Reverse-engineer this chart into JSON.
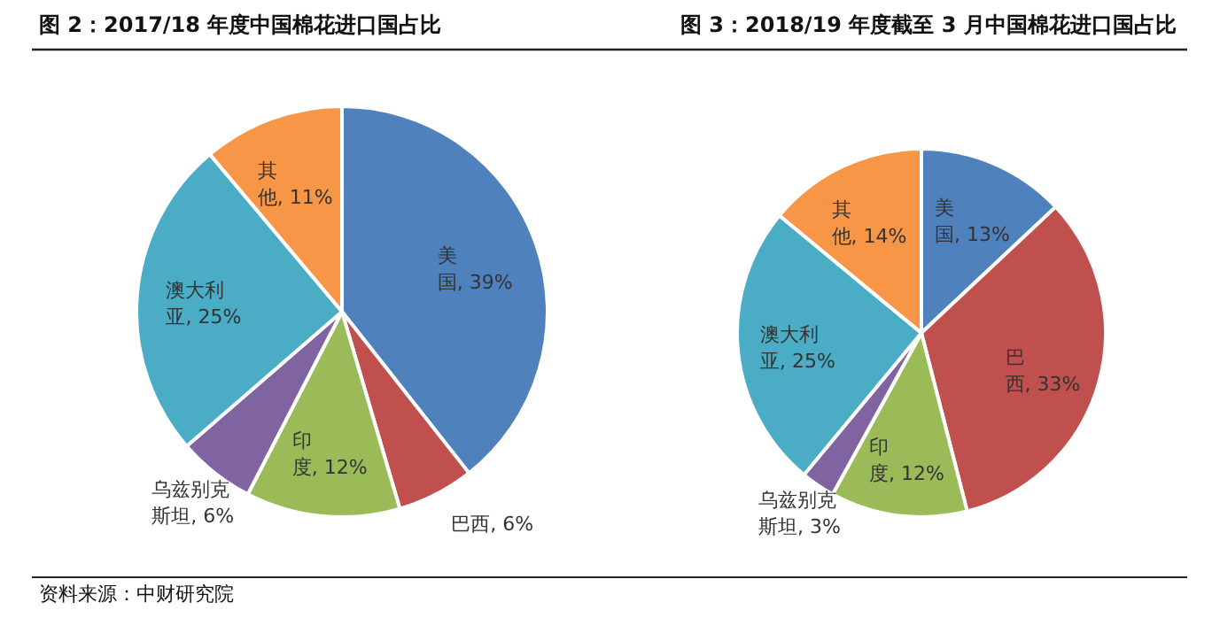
{
  "chart_data": [
    {
      "type": "pie",
      "title": "图 2：2017/18 年度中国棉花进口国占比",
      "categories": [
        "美国",
        "巴西",
        "印度",
        "乌兹别克斯坦",
        "澳大利亚",
        "其他"
      ],
      "values": [
        39,
        6,
        12,
        6,
        25,
        11
      ],
      "colors": [
        "#4f81bd",
        "#c0504d",
        "#9bbb59",
        "#8064a2",
        "#4bacc6",
        "#f79646"
      ],
      "value_labels": [
        ", 39%",
        ", 6%",
        ", 12%",
        ", 6%",
        ", 25%",
        ", 11%"
      ],
      "legend": false,
      "annotations": [
        "资料来源：中财研究院"
      ]
    },
    {
      "type": "pie",
      "title": "图 3：2018/19 年度截至 3 月中国棉花进口国占比",
      "categories": [
        "美国",
        "巴西",
        "印度",
        "乌兹别克斯坦",
        "澳大利亚",
        "其他"
      ],
      "values": [
        13,
        33,
        12,
        3,
        25,
        14
      ],
      "colors": [
        "#4f81bd",
        "#c0504d",
        "#9bbb59",
        "#8064a2",
        "#4bacc6",
        "#f79646"
      ],
      "value_labels": [
        ", 13%",
        ", 33%",
        ", 12%",
        ", 3%",
        ", 25%",
        ", 14%"
      ],
      "legend": false
    }
  ]
}
